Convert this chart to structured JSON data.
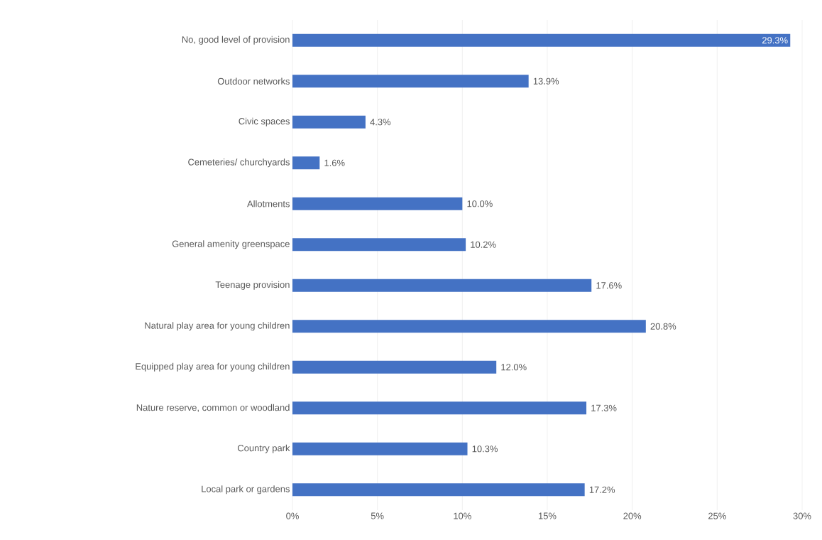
{
  "chart_data": {
    "type": "bar",
    "orientation": "horizontal",
    "color": "#4472c4",
    "categories": [
      "No, good level of provision",
      "Outdoor networks",
      "Civic spaces",
      "Cemeteries/ churchyards",
      "Allotments",
      "General amenity greenspace",
      "Teenage provision",
      "Natural play area for young children",
      "Equipped play area for young children",
      "Nature reserve, common or woodland",
      "Country park",
      "Local park or gardens"
    ],
    "values": [
      29.3,
      13.9,
      4.3,
      1.6,
      10.0,
      10.2,
      17.6,
      20.8,
      12.0,
      17.3,
      10.3,
      17.2
    ],
    "value_labels": [
      "29.3%",
      "13.9%",
      "4.3%",
      "1.6%",
      "10.0%",
      "10.2%",
      "17.6%",
      "20.8%",
      "12.0%",
      "17.3%",
      "10.3%",
      "17.2%"
    ],
    "xlim": [
      0,
      30
    ],
    "xticks": [
      {
        "value": 0,
        "label": "0%"
      },
      {
        "value": 5,
        "label": "5%"
      },
      {
        "value": 10,
        "label": "10%"
      },
      {
        "value": 15,
        "label": "15%"
      },
      {
        "value": 20,
        "label": "20%"
      },
      {
        "value": 25,
        "label": "25%"
      },
      {
        "value": 30,
        "label": "30%"
      }
    ],
    "grid": "x"
  }
}
